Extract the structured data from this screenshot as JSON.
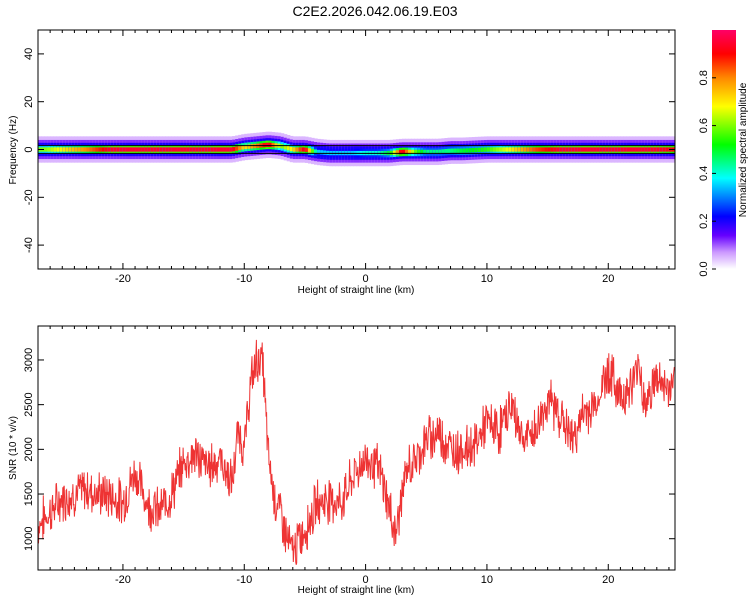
{
  "title": "C2E2.2026.042.06.19.E03",
  "chart_data": [
    {
      "type": "heatmap",
      "xlabel": "Height of straight line (km)",
      "ylabel": "Frequency (Hz)",
      "xlim": [
        -27,
        25.5
      ],
      "ylim": [
        -50,
        50
      ],
      "xticks": [
        -20,
        -10,
        0,
        10,
        20
      ],
      "yticks": [
        40,
        20,
        0,
        -20,
        -40
      ],
      "colorbar": {
        "label": "Normalized spectral amplitude",
        "range": [
          0.0,
          1.0
        ],
        "ticks": [
          0.0,
          0.2,
          0.4,
          0.6,
          0.8
        ],
        "tick_labels": [
          "0.0",
          "0.2",
          "0.4",
          "0.6",
          "0.8"
        ],
        "colormap": [
          "#ffffff",
          "#cc99ff",
          "#6600ff",
          "#0000ff",
          "#00ffff",
          "#00ff00",
          "#ffff00",
          "#ff8800",
          "#ff0000",
          "#ff0066"
        ]
      },
      "band": {
        "x": [
          -26.5,
          -25,
          -23,
          -21,
          -19,
          -17,
          -15,
          -13,
          -11,
          -10,
          -9,
          -8,
          -7,
          -6,
          -5,
          -4,
          -3,
          -2,
          -1,
          0,
          1,
          2,
          3,
          4,
          5,
          6,
          7,
          8,
          10,
          12,
          14,
          16,
          18,
          20,
          22,
          24,
          25.5
        ],
        "center": [
          0,
          0,
          0,
          0,
          0,
          0,
          0,
          0,
          0,
          1,
          1.5,
          2,
          1.5,
          0,
          0,
          -1,
          -1.5,
          -1.5,
          -1.5,
          -1.5,
          -1.5,
          -1.5,
          -1,
          -1,
          -1,
          -1,
          -0.5,
          -0.5,
          0,
          0,
          0,
          0,
          0,
          0,
          0,
          0,
          0
        ],
        "intensity": [
          0.6,
          0.7,
          0.8,
          0.95,
          0.95,
          0.95,
          0.95,
          0.95,
          0.95,
          0.7,
          0.8,
          0.95,
          0.6,
          0.7,
          0.95,
          0.35,
          0.35,
          0.35,
          0.35,
          0.4,
          0.4,
          0.5,
          0.95,
          0.6,
          0.45,
          0.45,
          0.45,
          0.5,
          0.55,
          0.7,
          0.85,
          0.95,
          0.95,
          0.95,
          0.95,
          0.95,
          0.9
        ]
      }
    },
    {
      "type": "line",
      "xlabel": "Height of straight line (km)",
      "ylabel": "SNR (10 * v/v)",
      "xlim": [
        -27,
        25.5
      ],
      "ylim": [
        650,
        3380
      ],
      "xticks": [
        -20,
        -10,
        0,
        10,
        20
      ],
      "yticks": [
        1000,
        1500,
        2000,
        2500,
        3000
      ],
      "color": "#ee3333",
      "series": [
        {
          "name": "SNR",
          "x": [
            -27,
            -26,
            -25,
            -24,
            -23,
            -22,
            -21,
            -20,
            -19,
            -18,
            -17,
            -16,
            -15,
            -14,
            -13,
            -12,
            -11,
            -10.5,
            -10,
            -9.5,
            -9,
            -8.5,
            -8,
            -7.5,
            -7,
            -6.5,
            -6,
            -5,
            -4,
            -3,
            -2,
            -1,
            0,
            1,
            1.5,
            2,
            2.5,
            3,
            3.5,
            4,
            5,
            6,
            7,
            8,
            9,
            10,
            11,
            12,
            13,
            14,
            15,
            16,
            17,
            18,
            19,
            20,
            21,
            22,
            22.5,
            23,
            24,
            25,
            25.5
          ],
          "y": [
            1150,
            1300,
            1450,
            1500,
            1550,
            1500,
            1480,
            1400,
            1750,
            1400,
            1300,
            1500,
            1850,
            1950,
            1800,
            1900,
            1600,
            2200,
            2000,
            2700,
            3000,
            3000,
            1900,
            1450,
            1300,
            1000,
            850,
            1100,
            1400,
            1450,
            1400,
            1700,
            1900,
            1800,
            1600,
            1300,
            1050,
            1500,
            1800,
            1850,
            2100,
            2200,
            2000,
            2000,
            2050,
            2300,
            2200,
            2500,
            2100,
            2200,
            2550,
            2400,
            2100,
            2400,
            2500,
            2900,
            2600,
            2700,
            3000,
            2500,
            2800,
            2650,
            2800
          ]
        }
      ]
    }
  ]
}
